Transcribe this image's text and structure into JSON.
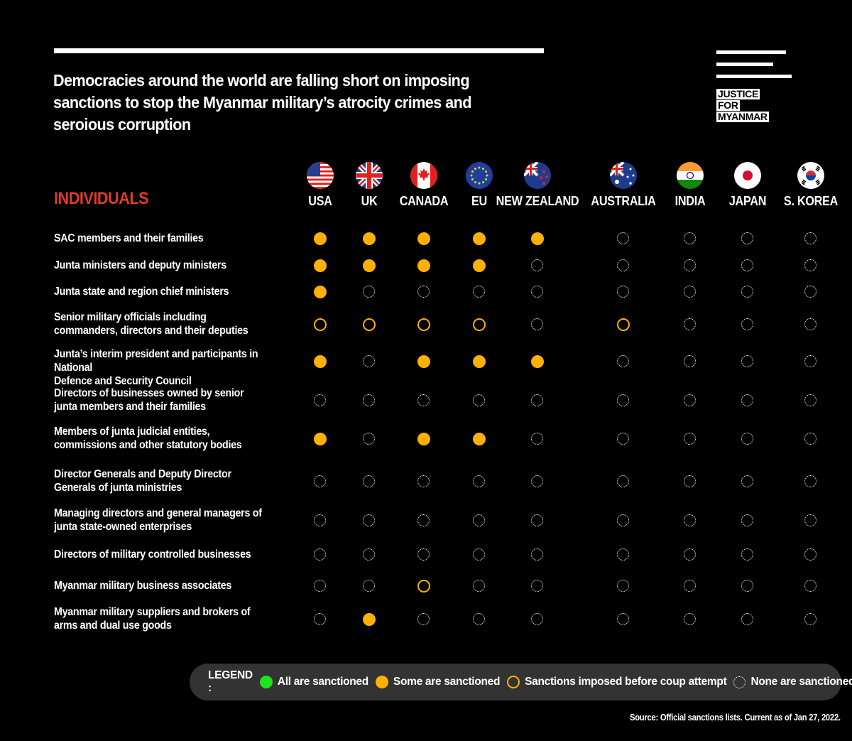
{
  "headline": "Democracies around the world are falling short on imposing sanctions to stop the Myanmar military’s atrocity crimes and seroious corruption",
  "logo": {
    "line1": "JUSTICE",
    "line2": "FOR",
    "line3": "MYANMAR"
  },
  "section_title": "INDIVIDUALS",
  "countries": [
    {
      "name": "USA",
      "flag": "usa-flag"
    },
    {
      "name": "UK",
      "flag": "uk-flag"
    },
    {
      "name": "CANADA",
      "flag": "canada-flag"
    },
    {
      "name": "EU",
      "flag": "eu-flag"
    },
    {
      "name": "NEW ZEALAND",
      "flag": "new-zealand-flag"
    },
    {
      "name": "AUSTRALIA",
      "flag": "australia-flag"
    },
    {
      "name": "INDIA",
      "flag": "india-flag"
    },
    {
      "name": "JAPAN",
      "flag": "japan-flag"
    },
    {
      "name": "S. KOREA",
      "flag": "south-korea-flag"
    }
  ],
  "rows": [
    {
      "label": [
        "SAC members and their families"
      ],
      "status": [
        "some",
        "some",
        "some",
        "some",
        "some",
        "none",
        "none",
        "none",
        "none"
      ]
    },
    {
      "label": [
        "Junta ministers and deputy ministers"
      ],
      "status": [
        "some",
        "some",
        "some",
        "some",
        "none",
        "none",
        "none",
        "none",
        "none"
      ]
    },
    {
      "label": [
        "Junta state and region chief ministers"
      ],
      "status": [
        "some",
        "none",
        "none",
        "none",
        "none",
        "none",
        "none",
        "none",
        "none"
      ]
    },
    {
      "label": [
        "Senior military officials including",
        "commanders, directors and their deputies"
      ],
      "status": [
        "pre",
        "pre",
        "pre",
        "pre",
        "none",
        "pre",
        "none",
        "none",
        "none"
      ]
    },
    {
      "label": [
        "Junta’s interim president and participants in National",
        "Defence and Security Council"
      ],
      "status": [
        "some",
        "none",
        "some",
        "some",
        "some",
        "none",
        "none",
        "none",
        "none"
      ]
    },
    {
      "label": [
        "Directors of businesses owned by senior",
        "junta members and their families"
      ],
      "status": [
        "none",
        "none",
        "none",
        "none",
        "none",
        "none",
        "none",
        "none",
        "none"
      ]
    },
    {
      "label": [
        "Members of junta judicial entities,",
        "commissions and other statutory bodies"
      ],
      "status": [
        "some",
        "none",
        "some",
        "some",
        "none",
        "none",
        "none",
        "none",
        "none"
      ]
    },
    {
      "label": [
        "Director Generals and Deputy Director",
        "Generals of junta ministries"
      ],
      "status": [
        "none",
        "none",
        "none",
        "none",
        "none",
        "none",
        "none",
        "none",
        "none"
      ]
    },
    {
      "label": [
        "Managing directors and general managers of",
        "junta state-owned enterprises"
      ],
      "status": [
        "none",
        "none",
        "none",
        "none",
        "none",
        "none",
        "none",
        "none",
        "none"
      ]
    },
    {
      "label": [
        "Directors of military controlled businesses"
      ],
      "status": [
        "none",
        "none",
        "none",
        "none",
        "none",
        "none",
        "none",
        "none",
        "none"
      ]
    },
    {
      "label": [
        "Myanmar military business associates"
      ],
      "status": [
        "none",
        "none",
        "pre",
        "none",
        "none",
        "none",
        "none",
        "none",
        "none"
      ]
    },
    {
      "label": [
        "Myanmar military suppliers and brokers of",
        "arms and dual use goods"
      ],
      "status": [
        "none",
        "some",
        "none",
        "none",
        "none",
        "none",
        "none",
        "none",
        "none"
      ]
    }
  ],
  "legend": {
    "title": "LEGEND :",
    "items": [
      {
        "key": "all",
        "label": "All are sanctioned"
      },
      {
        "key": "some",
        "label": "Some are sanctioned"
      },
      {
        "key": "pre",
        "label": "Sanctions imposed before coup attempt"
      },
      {
        "key": "none",
        "label": "None are sanctioned"
      }
    ]
  },
  "source": "Source: Official sanctions lists. Current as of Jan 27, 2022.",
  "colors": {
    "background": "#000000",
    "accent_red": "#e23a2f",
    "sanction_orange": "#ffb000",
    "all_green": "#1ee31e",
    "legend_bg": "#333333"
  }
}
